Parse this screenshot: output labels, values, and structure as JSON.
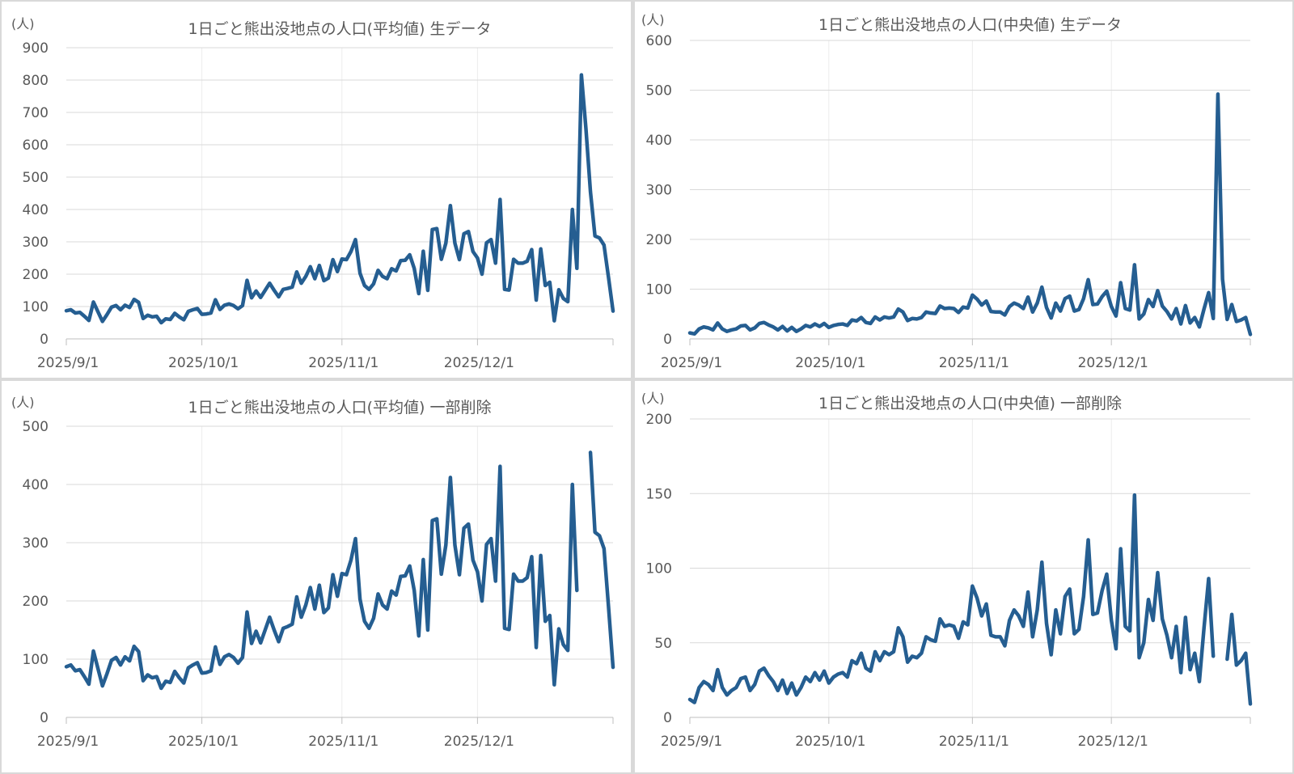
{
  "colors": {
    "series": "#255e91",
    "grid": "#d9d9d9",
    "text": "#595959",
    "background": "#ffffff",
    "separator": "#d9d9d9"
  },
  "chart_data": [
    {
      "type": "line",
      "title": "1日ごと熊出没地点の人口(平均値) 生データ",
      "unit_label": "(人)",
      "ylim": [
        0,
        900
      ],
      "yticks": [
        0,
        100,
        200,
        300,
        400,
        500,
        600,
        700,
        800,
        900
      ],
      "x_tick_labels": [
        "2025/9/1",
        "2025/10/1",
        "2025/11/1",
        "2025/12/1"
      ],
      "x_tick_days": [
        0,
        30,
        61,
        91
      ],
      "x_end_day": 121,
      "grid": true,
      "series": [
        {
          "x_start": "2025/9/1",
          "x_step": "1 day",
          "values": [
            87,
            90,
            80,
            82,
            70,
            57,
            114,
            84,
            54,
            75,
            98,
            103,
            90,
            104,
            97,
            122,
            113,
            63,
            73,
            68,
            70,
            50,
            62,
            60,
            79,
            68,
            59,
            85,
            90,
            94,
            76,
            77,
            80,
            121,
            91,
            104,
            108,
            103,
            93,
            103,
            181,
            127,
            148,
            128,
            150,
            172,
            150,
            130,
            153,
            156,
            160,
            207,
            172,
            193,
            223,
            186,
            227,
            180,
            188,
            245,
            208,
            247,
            245,
            270,
            307,
            203,
            165,
            153,
            170,
            212,
            193,
            186,
            217,
            210,
            242,
            243,
            260,
            218,
            140,
            271,
            150,
            338,
            341,
            246,
            296,
            412,
            296,
            245,
            325,
            332,
            270,
            250,
            200,
            297,
            307,
            234,
            431,
            153,
            151,
            246,
            234,
            234,
            240,
            276,
            120,
            278,
            165,
            175,
            56,
            152,
            125,
            115,
            400,
            218,
            816,
            650,
            455,
            318,
            312,
            290,
            190,
            86
          ]
        }
      ]
    },
    {
      "type": "line",
      "title": "1日ごと熊出没地点の人口(中央値) 生データ",
      "unit_label": "(人)",
      "ylim": [
        0,
        600
      ],
      "yticks": [
        0,
        100,
        200,
        300,
        400,
        500,
        600
      ],
      "x_tick_labels": [
        "2025/9/1",
        "2025/10/1",
        "2025/11/1",
        "2025/12/1"
      ],
      "x_tick_days": [
        0,
        30,
        61,
        91
      ],
      "x_end_day": 121,
      "grid": true,
      "series": [
        {
          "x_start": "2025/9/1",
          "x_step": "1 day",
          "values": [
            12,
            10,
            20,
            24,
            22,
            18,
            32,
            20,
            15,
            18,
            20,
            26,
            27,
            18,
            22,
            31,
            33,
            28,
            24,
            18,
            25,
            16,
            23,
            15,
            20,
            27,
            24,
            30,
            25,
            31,
            23,
            27,
            29,
            30,
            27,
            38,
            36,
            43,
            33,
            31,
            44,
            38,
            44,
            42,
            44,
            60,
            54,
            37,
            41,
            40,
            43,
            54,
            52,
            51,
            66,
            61,
            62,
            61,
            53,
            64,
            62,
            88,
            80,
            68,
            76,
            55,
            54,
            54,
            48,
            65,
            72,
            68,
            61,
            84,
            54,
            72,
            104,
            63,
            42,
            72,
            56,
            81,
            86,
            56,
            59,
            81,
            119,
            69,
            70,
            85,
            96,
            65,
            46,
            113,
            61,
            58,
            149,
            40,
            50,
            79,
            65,
            97,
            66,
            55,
            40,
            61,
            30,
            67,
            32,
            43,
            24,
            60,
            93,
            41,
            492,
            120,
            39,
            69,
            35,
            38,
            43,
            9
          ]
        }
      ]
    },
    {
      "type": "line",
      "title": "1日ごと熊出没地点の人口(平均値) 一部削除",
      "unit_label": "(人)",
      "ylim": [
        0,
        500
      ],
      "yticks": [
        0,
        100,
        200,
        300,
        400,
        500
      ],
      "x_tick_labels": [
        "2025/9/1",
        "2025/10/1",
        "2025/11/1",
        "2025/12/1"
      ],
      "x_tick_days": [
        0,
        30,
        61,
        91
      ],
      "x_end_day": 121,
      "grid": true,
      "series": [
        {
          "x_start": "2025/9/1",
          "x_step": "1 day",
          "values": [
            87,
            90,
            80,
            82,
            70,
            57,
            114,
            84,
            54,
            75,
            98,
            103,
            90,
            104,
            97,
            122,
            113,
            63,
            73,
            68,
            70,
            50,
            62,
            60,
            79,
            68,
            59,
            85,
            90,
            94,
            76,
            77,
            80,
            121,
            91,
            104,
            108,
            103,
            93,
            103,
            181,
            127,
            148,
            128,
            150,
            172,
            150,
            130,
            153,
            156,
            160,
            207,
            172,
            193,
            223,
            186,
            227,
            180,
            188,
            245,
            208,
            247,
            245,
            270,
            307,
            203,
            165,
            153,
            170,
            212,
            193,
            186,
            217,
            210,
            242,
            243,
            260,
            218,
            140,
            271,
            150,
            338,
            341,
            246,
            296,
            412,
            296,
            245,
            325,
            332,
            270,
            250,
            200,
            297,
            307,
            234,
            431,
            153,
            151,
            246,
            234,
            234,
            240,
            276,
            120,
            278,
            165,
            175,
            56,
            152,
            125,
            115,
            400,
            218,
            null,
            null,
            455,
            318,
            312,
            290,
            190,
            86
          ]
        }
      ]
    },
    {
      "type": "line",
      "title": "1日ごと熊出没地点の人口(中央値) 一部削除",
      "unit_label": "(人)",
      "ylim": [
        0,
        200
      ],
      "yticks": [
        0,
        50,
        100,
        150,
        200
      ],
      "x_tick_labels": [
        "2025/9/1",
        "2025/10/1",
        "2025/11/1",
        "2025/12/1"
      ],
      "x_tick_days": [
        0,
        30,
        61,
        91
      ],
      "x_end_day": 121,
      "grid": true,
      "series": [
        {
          "x_start": "2025/9/1",
          "x_step": "1 day",
          "values": [
            12,
            10,
            20,
            24,
            22,
            18,
            32,
            20,
            15,
            18,
            20,
            26,
            27,
            18,
            22,
            31,
            33,
            28,
            24,
            18,
            25,
            16,
            23,
            15,
            20,
            27,
            24,
            30,
            25,
            31,
            23,
            27,
            29,
            30,
            27,
            38,
            36,
            43,
            33,
            31,
            44,
            38,
            44,
            42,
            44,
            60,
            54,
            37,
            41,
            40,
            43,
            54,
            52,
            51,
            66,
            61,
            62,
            61,
            53,
            64,
            62,
            88,
            80,
            68,
            76,
            55,
            54,
            54,
            48,
            65,
            72,
            68,
            61,
            84,
            54,
            72,
            104,
            63,
            42,
            72,
            56,
            81,
            86,
            56,
            59,
            81,
            119,
            69,
            70,
            85,
            96,
            65,
            46,
            113,
            61,
            58,
            149,
            40,
            50,
            79,
            65,
            97,
            66,
            55,
            40,
            61,
            30,
            67,
            32,
            43,
            24,
            60,
            93,
            41,
            null,
            null,
            39,
            69,
            35,
            38,
            43,
            9
          ]
        }
      ]
    }
  ]
}
